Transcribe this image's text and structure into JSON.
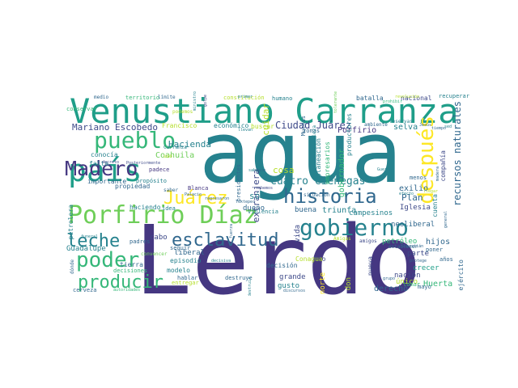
{
  "palette": {
    "dark_purple": "#453781",
    "purple": "#3e4a89",
    "blue": "#31688e",
    "teal": "#26828e",
    "sea": "#1f9e89",
    "green": "#35b779",
    "light_green": "#6ece58",
    "lime": "#b5de2b",
    "yellow": "#fde725"
  },
  "words": [
    {
      "text": "agua",
      "weight": 1.0,
      "color": "#26828e"
    },
    {
      "text": "Lerdo",
      "weight": 0.97,
      "color": "#453781"
    },
    {
      "text": "Venustiano Carranza",
      "weight": 0.45,
      "color": "#1f9e89"
    },
    {
      "text": "Porfirio Díaz",
      "weight": 0.4,
      "color": "#6ece58"
    },
    {
      "text": "país",
      "weight": 0.4,
      "color": "#1f9e89"
    },
    {
      "text": "gobierno",
      "weight": 0.38,
      "color": "#26828e"
    },
    {
      "text": "historia",
      "weight": 0.33,
      "color": "#31688e"
    },
    {
      "text": "pueblo",
      "weight": 0.33,
      "color": "#35b779"
    },
    {
      "text": "después",
      "weight": 0.33,
      "color": "#fde725"
    },
    {
      "text": "Madero",
      "weight": 0.3,
      "color": "#453781"
    },
    {
      "text": "poder",
      "weight": 0.3,
      "color": "#35b779"
    },
    {
      "text": "esclavitud",
      "weight": 0.27,
      "color": "#31688e"
    },
    {
      "text": "leche",
      "weight": 0.26,
      "color": "#26828e"
    },
    {
      "text": "producir",
      "weight": 0.26,
      "color": "#35b779"
    },
    {
      "text": "Juárez",
      "weight": 0.26,
      "color": "#fde725"
    },
    {
      "text": "Mariano Escobedo",
      "weight": 0.13,
      "color": "#3e4a89"
    },
    {
      "text": "Ciudad Juárez",
      "weight": 0.13,
      "color": "#3e4a89"
    },
    {
      "text": "Cuatro Ciénegas",
      "weight": 0.13,
      "color": "#26828e"
    },
    {
      "text": "recursos naturales",
      "weight": 0.13,
      "color": "#31688e"
    },
    {
      "text": "Hacienda",
      "weight": 0.12,
      "color": "#26828e"
    },
    {
      "text": "extranjera",
      "weight": 0.12,
      "color": "#3e4a89"
    },
    {
      "text": "cuidar",
      "weight": 0.11,
      "color": "#b5de2b"
    },
    {
      "text": "Coahuila",
      "weight": 0.1,
      "color": "#6ece58"
    },
    {
      "text": "cosa",
      "weight": 0.1,
      "color": "#b5de2b"
    },
    {
      "text": "sólo",
      "weight": 0.1,
      "color": "#26828e"
    },
    {
      "text": "buena",
      "weight": 0.1,
      "color": "#31688e"
    },
    {
      "text": "triunfa",
      "weight": 0.1,
      "color": "#26828e"
    },
    {
      "text": "Plan",
      "weight": 0.1,
      "color": "#31688e"
    },
    {
      "text": "selva",
      "weight": 0.1,
      "color": "#26828e"
    },
    {
      "text": "exilio",
      "weight": 0.1,
      "color": "#31688e"
    },
    {
      "text": "gobernador",
      "weight": 0.1,
      "color": "#35b779"
    },
    {
      "text": "hijos",
      "weight": 0.1,
      "color": "#31688e"
    },
    {
      "text": "Huerta",
      "weight": 0.1,
      "color": "#35b779"
    },
    {
      "text": "dueño",
      "weight": 0.09,
      "color": "#31688e"
    },
    {
      "text": "derecho",
      "weight": 0.09,
      "color": "#31688e"
    },
    {
      "text": "Iglesia",
      "weight": 0.09,
      "color": "#3e4a89"
    },
    {
      "text": "parte",
      "weight": 0.09,
      "color": "#3e4a89"
    },
    {
      "text": "nación",
      "weight": 0.08,
      "color": "#3e4a89"
    },
    {
      "text": "crecer",
      "weight": 0.08,
      "color": "#1f9e89"
    },
    {
      "text": "Porfirio",
      "weight": 0.08,
      "color": "#453781"
    },
    {
      "text": "campesinos",
      "weight": 0.08,
      "color": "#26828e"
    },
    {
      "text": "petróleo",
      "weight": 0.08,
      "color": "#35b779"
    },
    {
      "text": "neoliberal",
      "weight": 0.08,
      "color": "#31688e"
    },
    {
      "text": "único",
      "weight": 0.08,
      "color": "#b5de2b"
    },
    {
      "text": "vida",
      "weight": 0.08,
      "color": "#3e4a89"
    },
    {
      "text": "grande",
      "weight": 0.08,
      "color": "#3e4a89"
    },
    {
      "text": "decisión",
      "weight": 0.08,
      "color": "#31688e"
    },
    {
      "text": "gusto",
      "weight": 0.08,
      "color": "#26828e"
    },
    {
      "text": "cabo",
      "weight": 0.08,
      "color": "#3e4a89"
    },
    {
      "text": "liberal",
      "weight": 0.08,
      "color": "#31688e"
    },
    {
      "text": "episodio",
      "weight": 0.08,
      "color": "#26828e"
    },
    {
      "text": "modelo",
      "weight": 0.08,
      "color": "#26828e"
    },
    {
      "text": "Guadalupe",
      "weight": 0.08,
      "color": "#26828e"
    },
    {
      "text": "tierra",
      "weight": 0.08,
      "color": "#31688e"
    },
    {
      "text": "hablar",
      "weight": 0.07,
      "color": "#31688e"
    },
    {
      "text": "destruye",
      "weight": 0.07,
      "color": "#31688e"
    },
    {
      "text": "entregar",
      "weight": 0.07,
      "color": "#b5de2b"
    },
    {
      "text": "propiedad",
      "weight": 0.07,
      "color": "#31688e"
    },
    {
      "text": "Dio",
      "weight": 0.07,
      "color": "#3e4a89"
    },
    {
      "text": "Conagua",
      "weight": 0.07,
      "color": "#b5de2b"
    },
    {
      "text": "nueva",
      "weight": 0.07,
      "color": "#3e4a89"
    },
    {
      "text": "norte",
      "weight": 0.07,
      "color": "#fde725"
    },
    {
      "text": "don",
      "weight": 0.07,
      "color": "#b5de2b"
    },
    {
      "text": "tomar",
      "weight": 0.07,
      "color": "#35b779"
    },
    {
      "text": "mayo",
      "weight": 0.06,
      "color": "#31688e"
    },
    {
      "text": "ejército",
      "weight": 0.06,
      "color": "#31688e"
    },
    {
      "text": "cuenta",
      "weight": 0.06,
      "color": "#26828e"
    },
    {
      "text": "compañía",
      "weight": 0.06,
      "color": "#3e4a89"
    },
    {
      "text": "empresarios",
      "weight": 0.06,
      "color": "#35b779"
    },
    {
      "text": "planeación",
      "weight": 0.06,
      "color": "#26828e"
    },
    {
      "text": "productores",
      "weight": 0.06,
      "color": "#26828e"
    },
    {
      "text": "Francisco",
      "weight": 0.06,
      "color": "#b5de2b"
    },
    {
      "text": "económico",
      "weight": 0.06,
      "color": "#26828e"
    },
    {
      "text": "buscar",
      "weight": 0.06,
      "color": "#b5de2b"
    },
    {
      "text": "conocía",
      "weight": 0.06,
      "color": "#26828e"
    },
    {
      "text": "falta",
      "weight": 0.06,
      "color": "#26828e"
    },
    {
      "text": "importante",
      "weight": 0.06,
      "color": "#31688e"
    },
    {
      "text": "haciendo",
      "weight": 0.06,
      "color": "#26828e"
    },
    {
      "text": "idea",
      "weight": 0.06,
      "color": "#26828e"
    },
    {
      "text": "presidentes",
      "weight": 0.06,
      "color": "#31688e"
    },
    {
      "text": "violencia",
      "weight": 0.06,
      "color": "#26828e"
    },
    {
      "text": "petrolera",
      "weight": 0.06,
      "color": "#26828e"
    },
    {
      "text": "seguir",
      "weight": 0.06,
      "color": "#31688e"
    },
    {
      "text": "podemos",
      "weight": 0.05,
      "color": "#b5de2b"
    },
    {
      "text": "saber",
      "weight": 0.05,
      "color": "#31688e"
    },
    {
      "text": "cerveza",
      "weight": 0.05,
      "color": "#31688e"
    },
    {
      "text": "decisiones",
      "weight": 0.05,
      "color": "#35b779"
    },
    {
      "text": "padres",
      "weight": 0.05,
      "color": "#31688e"
    },
    {
      "text": "convencer",
      "weight": 0.05,
      "color": "#6ece58"
    },
    {
      "text": "menos",
      "weight": 0.05,
      "color": "#31688e"
    },
    {
      "text": "poner",
      "weight": 0.05,
      "color": "#31688e"
    },
    {
      "text": "años",
      "weight": 0.05,
      "color": "#31688e"
    },
    {
      "text": "amigos",
      "weight": 0.05,
      "color": "#3e4a89"
    },
    {
      "text": "establecer",
      "weight": 0.05,
      "color": "#31688e"
    },
    {
      "text": "batalla",
      "weight": 0.05,
      "color": "#31688e"
    },
    {
      "text": "nacional",
      "weight": 0.05,
      "color": "#3e4a89"
    },
    {
      "text": "recuperar",
      "weight": 0.05,
      "color": "#26828e"
    },
    {
      "text": "territorio",
      "weight": 0.05,
      "color": "#35b779"
    },
    {
      "text": "constitución",
      "weight": 0.05,
      "color": "#b5de2b"
    },
    {
      "text": "humano",
      "weight": 0.05,
      "color": "#26828e"
    },
    {
      "text": "reservas",
      "weight": 0.05,
      "color": "#26828e"
    },
    {
      "text": "ambiente",
      "weight": 0.05,
      "color": "#31688e"
    },
    {
      "text": "Blanca",
      "weight": 0.05,
      "color": "#453781"
    },
    {
      "text": "zonas",
      "weight": 0.05,
      "color": "#31688e"
    },
    {
      "text": "Muchas",
      "weight": 0.05,
      "color": "#31688e"
    },
    {
      "text": "conservar",
      "weight": 0.05,
      "color": "#35b779"
    },
    {
      "text": "padece",
      "weight": 0.05,
      "color": "#453781"
    },
    {
      "text": "propósito",
      "weight": 0.05,
      "color": "#26828e"
    },
    {
      "text": "uso",
      "weight": 0.05,
      "color": "#b5de2b"
    },
    {
      "text": "naturaleza",
      "weight": 0.05,
      "color": "#26828e"
    },
    {
      "text": "situación",
      "weight": 0.04,
      "color": "#31688e"
    },
    {
      "text": "medio",
      "weight": 0.04,
      "color": "#31688e"
    },
    {
      "text": "límite",
      "weight": 0.04,
      "color": "#31688e"
    },
    {
      "text": "ministro",
      "weight": 0.04,
      "color": "#26828e"
    },
    {
      "text": "golpe",
      "weight": 0.04,
      "color": "#3e4a89"
    },
    {
      "text": "primer",
      "weight": 0.04,
      "color": "#26828e"
    },
    {
      "text": "llevan",
      "weight": 0.04,
      "color": "#26828e"
    },
    {
      "text": "toca",
      "weight": 0.04,
      "color": "#3e4a89"
    },
    {
      "text": "sabemos",
      "weight": 0.04,
      "color": "#3e4a89"
    },
    {
      "text": "prohibir",
      "weight": 0.04,
      "color": "#35b779"
    },
    {
      "text": "revolución",
      "weight": 0.04,
      "color": "#b5de2b"
    },
    {
      "text": "Carranza",
      "weight": 0.04,
      "color": "#26828e"
    },
    {
      "text": "sabemos",
      "weight": 0.04,
      "color": "#26828e"
    },
    {
      "text": "Guerra",
      "weight": 0.04,
      "color": "#26828e"
    },
    {
      "text": "tiempo",
      "weight": 0.04,
      "color": "#31688e"
    },
    {
      "text": "Jesús",
      "weight": 0.04,
      "color": "#31688e"
    },
    {
      "text": "efecto",
      "weight": 0.04,
      "color": "#26828e"
    },
    {
      "text": "llegar",
      "weight": 0.04,
      "color": "#b5de2b"
    },
    {
      "text": "Sebastián",
      "weight": 0.04,
      "color": "#31688e"
    },
    {
      "text": "protege",
      "weight": 0.04,
      "color": "#31688e"
    },
    {
      "text": "Amigas",
      "weight": 0.04,
      "color": "#b5de2b"
    },
    {
      "text": "fuerza",
      "weight": 0.04,
      "color": "#31688e"
    },
    {
      "text": "regresaron",
      "weight": 0.04,
      "color": "#31688e"
    },
    {
      "text": "Tuxtepec",
      "weight": 0.04,
      "color": "#31688e"
    },
    {
      "text": "autoridades",
      "weight": 0.04,
      "color": "#35b779"
    },
    {
      "text": "discursos",
      "weight": 0.04,
      "color": "#31688e"
    },
    {
      "text": "destruir",
      "weight": 0.04,
      "color": "#26828e"
    },
    {
      "text": "decisiva",
      "weight": 0.04,
      "color": "#26828e"
    },
    {
      "text": "dónde",
      "weight": 0.04,
      "color": "#31688e"
    },
    {
      "text": "funeral",
      "weight": 0.04,
      "color": "#26828e"
    },
    {
      "text": "Palacio",
      "weight": 0.04,
      "color": "#31688e"
    },
    {
      "text": "Posteriormente",
      "weight": 0.04,
      "color": "#3e4a89"
    },
    {
      "text": "decreto",
      "weight": 0.04,
      "color": "#3e4a89"
    },
    {
      "text": "madera",
      "weight": 0.04,
      "color": "#31688e"
    },
    {
      "text": "tolerante",
      "weight": 0.04,
      "color": "#6ece58"
    },
    {
      "text": "sed",
      "weight": 0.03,
      "color": "#26828e"
    },
    {
      "text": "grupo",
      "weight": 0.03,
      "color": "#31688e"
    },
    {
      "text": "general",
      "weight": 0.03,
      "color": "#31688e"
    }
  ]
}
